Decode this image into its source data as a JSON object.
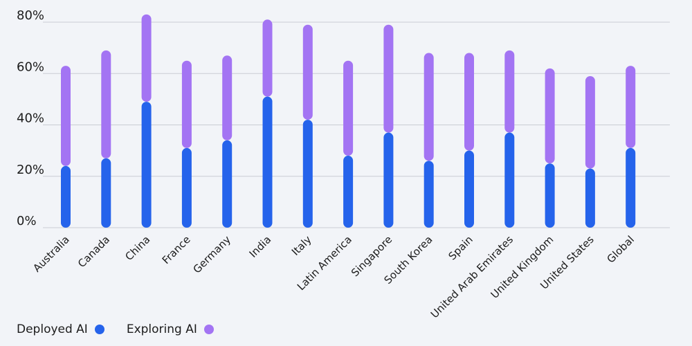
{
  "chart_data": {
    "type": "bar",
    "stacked": true,
    "categories": [
      "Australia",
      "Canada",
      "China",
      "France",
      "Germany",
      "India",
      "Italy",
      "Latin America",
      "Singapore",
      "South Korea",
      "Spain",
      "United Arab Emirates",
      "United Kingdom",
      "United States",
      "Global"
    ],
    "series": [
      {
        "name": "Deployed AI",
        "color": "#2563eb",
        "values": [
          24,
          27,
          49,
          31,
          34,
          51,
          42,
          28,
          37,
          26,
          30,
          37,
          25,
          23,
          31
        ]
      },
      {
        "name": "Exploring AI",
        "color": "#a374f3",
        "values": [
          39,
          42,
          34,
          34,
          33,
          30,
          37,
          37,
          42,
          42,
          38,
          32,
          37,
          36,
          32
        ]
      }
    ],
    "yticks": [
      "0%",
      "20%",
      "40%",
      "60%",
      "80%"
    ],
    "ylim": [
      0,
      80
    ],
    "grid": true,
    "legend_position": "bottom-left"
  }
}
